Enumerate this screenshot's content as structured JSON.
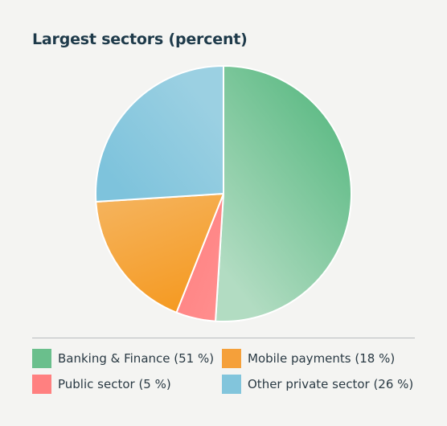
{
  "chart_data": {
    "type": "pie",
    "title": "Largest sectors (percent)",
    "categories": [
      "Banking & Finance",
      "Public sector",
      "Mobile payments",
      "Other private sector"
    ],
    "values": [
      51,
      5,
      18,
      26
    ],
    "colors": [
      "#6abf8c",
      "#ff8080",
      "#f5a03a",
      "#82c5dc"
    ],
    "legend_labels": [
      "Banking & Finance (51 %)",
      "Mobile payments (18 %)",
      "Public sector (5 %)",
      "Other private sector (26 %)"
    ],
    "legend_colors": [
      "#6abf8c",
      "#f5a03a",
      "#ff8080",
      "#82c5dc"
    ],
    "legend_placement": "bottom"
  }
}
